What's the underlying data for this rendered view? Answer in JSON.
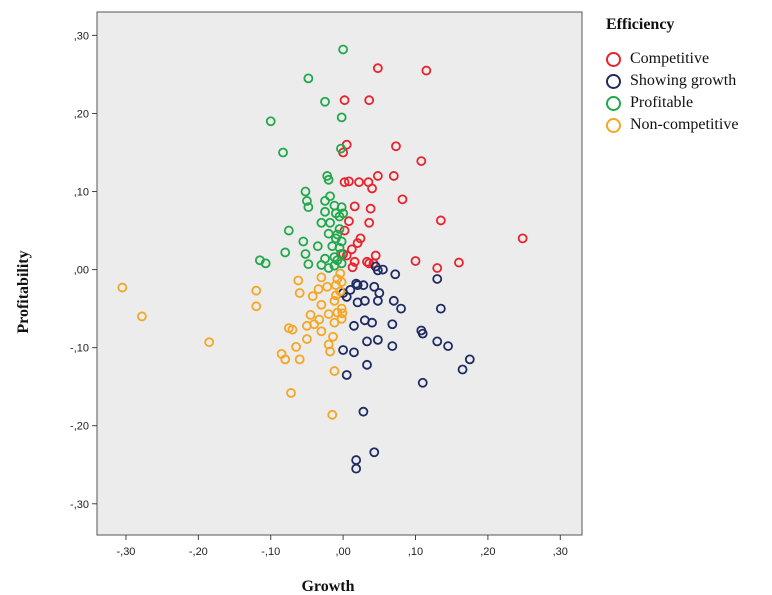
{
  "chart_data": {
    "type": "scatter",
    "xlabel": "Growth",
    "ylabel": "Profitability",
    "xlim": [
      -0.34,
      0.33
    ],
    "ylim": [
      -0.34,
      0.33
    ],
    "x_ticks": [
      -0.3,
      -0.2,
      -0.1,
      0.0,
      0.1,
      0.2,
      0.3
    ],
    "x_tick_labels": [
      "-,30",
      "-,20",
      "-,10",
      ",00",
      ",10",
      ",20",
      ",30"
    ],
    "y_ticks": [
      0.3,
      0.2,
      0.1,
      0.0,
      -0.1,
      -0.2,
      -0.3
    ],
    "y_tick_labels": [
      ",30",
      ",20",
      ",10",
      ",00",
      "-,10",
      "-,20",
      "-,30"
    ],
    "grid": false,
    "plot_background": "#ececec",
    "legend": {
      "title": "Efficiency",
      "placement": "right"
    },
    "series": [
      {
        "name": "Competitive",
        "color": "#e8232b",
        "points": [
          [
            0.048,
            0.258
          ],
          [
            0.115,
            0.255
          ],
          [
            0.002,
            0.217
          ],
          [
            0.036,
            0.217
          ],
          [
            0.073,
            0.158
          ],
          [
            0.005,
            0.16
          ],
          [
            0.0,
            0.15
          ],
          [
            0.108,
            0.139
          ],
          [
            0.048,
            0.12
          ],
          [
            0.07,
            0.12
          ],
          [
            0.002,
            0.112
          ],
          [
            0.008,
            0.113
          ],
          [
            0.022,
            0.112
          ],
          [
            0.035,
            0.112
          ],
          [
            0.04,
            0.104
          ],
          [
            0.082,
            0.09
          ],
          [
            0.016,
            0.081
          ],
          [
            0.038,
            0.078
          ],
          [
            0.135,
            0.063
          ],
          [
            0.008,
            0.062
          ],
          [
            0.036,
            0.06
          ],
          [
            0.002,
            0.05
          ],
          [
            0.248,
            0.04
          ],
          [
            0.02,
            0.034
          ],
          [
            0.024,
            0.04
          ],
          [
            0.012,
            0.026
          ],
          [
            0.0,
            0.02
          ],
          [
            0.005,
            0.018
          ],
          [
            0.045,
            0.018
          ],
          [
            0.016,
            0.01
          ],
          [
            0.033,
            0.01
          ],
          [
            0.036,
            0.008
          ],
          [
            0.042,
            0.008
          ],
          [
            0.1,
            0.011
          ],
          [
            0.16,
            0.009
          ],
          [
            0.013,
            0.003
          ],
          [
            0.13,
            0.002
          ]
        ]
      },
      {
        "name": "Showing growth",
        "color": "#1f2a63",
        "points": [
          [
            0.048,
            -0.001
          ],
          [
            0.055,
            0.0
          ],
          [
            0.045,
            0.004
          ],
          [
            0.072,
            -0.006
          ],
          [
            0.018,
            -0.018
          ],
          [
            0.02,
            -0.02
          ],
          [
            0.028,
            -0.02
          ],
          [
            0.043,
            -0.022
          ],
          [
            0.13,
            -0.012
          ],
          [
            0.01,
            -0.026
          ],
          [
            0.0,
            -0.03
          ],
          [
            0.05,
            -0.03
          ],
          [
            0.005,
            -0.035
          ],
          [
            0.03,
            -0.04
          ],
          [
            0.048,
            -0.04
          ],
          [
            0.07,
            -0.04
          ],
          [
            0.02,
            -0.042
          ],
          [
            0.08,
            -0.05
          ],
          [
            0.135,
            -0.05
          ],
          [
            0.03,
            -0.065
          ],
          [
            0.04,
            -0.068
          ],
          [
            0.015,
            -0.072
          ],
          [
            0.068,
            -0.07
          ],
          [
            0.108,
            -0.078
          ],
          [
            0.11,
            -0.082
          ],
          [
            0.048,
            -0.09
          ],
          [
            0.033,
            -0.092
          ],
          [
            0.13,
            -0.092
          ],
          [
            0.145,
            -0.098
          ],
          [
            0.068,
            -0.098
          ],
          [
            0.0,
            -0.103
          ],
          [
            0.015,
            -0.106
          ],
          [
            0.175,
            -0.115
          ],
          [
            0.033,
            -0.122
          ],
          [
            0.165,
            -0.128
          ],
          [
            0.005,
            -0.135
          ],
          [
            0.11,
            -0.145
          ],
          [
            0.028,
            -0.182
          ],
          [
            0.043,
            -0.234
          ],
          [
            0.018,
            -0.244
          ],
          [
            0.018,
            -0.255
          ]
        ]
      },
      {
        "name": "Profitable",
        "color": "#21a84a",
        "points": [
          [
            0.0,
            0.282
          ],
          [
            -0.048,
            0.245
          ],
          [
            -0.025,
            0.215
          ],
          [
            -0.002,
            0.195
          ],
          [
            -0.1,
            0.19
          ],
          [
            -0.003,
            0.155
          ],
          [
            -0.083,
            0.15
          ],
          [
            -0.022,
            0.12
          ],
          [
            -0.02,
            0.115
          ],
          [
            -0.052,
            0.1
          ],
          [
            -0.018,
            0.094
          ],
          [
            -0.05,
            0.088
          ],
          [
            -0.025,
            0.088
          ],
          [
            -0.048,
            0.08
          ],
          [
            -0.012,
            0.082
          ],
          [
            -0.002,
            0.08
          ],
          [
            -0.025,
            0.074
          ],
          [
            -0.01,
            0.072
          ],
          [
            0.0,
            0.072
          ],
          [
            -0.005,
            0.068
          ],
          [
            -0.03,
            0.06
          ],
          [
            -0.018,
            0.06
          ],
          [
            -0.005,
            0.052
          ],
          [
            -0.075,
            0.05
          ],
          [
            -0.02,
            0.046
          ],
          [
            -0.008,
            0.045
          ],
          [
            -0.01,
            0.04
          ],
          [
            -0.055,
            0.036
          ],
          [
            -0.002,
            0.036
          ],
          [
            -0.035,
            0.03
          ],
          [
            -0.015,
            0.03
          ],
          [
            -0.005,
            0.028
          ],
          [
            -0.08,
            0.022
          ],
          [
            -0.052,
            0.02
          ],
          [
            -0.003,
            0.02
          ],
          [
            -0.012,
            0.016
          ],
          [
            -0.025,
            0.014
          ],
          [
            -0.008,
            0.012
          ],
          [
            -0.115,
            0.012
          ],
          [
            -0.107,
            0.008
          ],
          [
            -0.048,
            0.007
          ],
          [
            -0.03,
            0.006
          ],
          [
            -0.012,
            0.005
          ],
          [
            -0.002,
            0.008
          ],
          [
            -0.02,
            0.002
          ]
        ]
      },
      {
        "name": "Non-competitive",
        "color": "#f5a623",
        "points": [
          [
            -0.305,
            -0.023
          ],
          [
            -0.278,
            -0.06
          ],
          [
            -0.185,
            -0.093
          ],
          [
            -0.12,
            -0.027
          ],
          [
            -0.12,
            -0.047
          ],
          [
            -0.062,
            -0.014
          ],
          [
            -0.03,
            -0.01
          ],
          [
            -0.008,
            -0.012
          ],
          [
            -0.004,
            -0.005
          ],
          [
            -0.002,
            -0.016
          ],
          [
            -0.01,
            -0.02
          ],
          [
            -0.034,
            -0.025
          ],
          [
            -0.022,
            -0.022
          ],
          [
            -0.06,
            -0.03
          ],
          [
            -0.042,
            -0.034
          ],
          [
            -0.01,
            -0.033
          ],
          [
            -0.004,
            -0.028
          ],
          [
            -0.012,
            -0.04
          ],
          [
            -0.03,
            -0.045
          ],
          [
            -0.002,
            -0.05
          ],
          [
            -0.02,
            -0.057
          ],
          [
            -0.045,
            -0.058
          ],
          [
            -0.033,
            -0.064
          ],
          [
            -0.008,
            -0.055
          ],
          [
            -0.001,
            -0.056
          ],
          [
            -0.012,
            -0.068
          ],
          [
            -0.05,
            -0.072
          ],
          [
            -0.075,
            -0.075
          ],
          [
            -0.07,
            -0.077
          ],
          [
            -0.03,
            -0.079
          ],
          [
            -0.014,
            -0.086
          ],
          [
            -0.05,
            -0.089
          ],
          [
            -0.02,
            -0.096
          ],
          [
            -0.065,
            -0.099
          ],
          [
            -0.085,
            -0.108
          ],
          [
            -0.08,
            -0.115
          ],
          [
            -0.06,
            -0.115
          ],
          [
            -0.012,
            -0.13
          ],
          [
            -0.072,
            -0.158
          ],
          [
            -0.015,
            -0.186
          ],
          [
            -0.002,
            -0.063
          ],
          [
            -0.018,
            -0.105
          ],
          [
            -0.04,
            -0.07
          ]
        ]
      }
    ]
  }
}
